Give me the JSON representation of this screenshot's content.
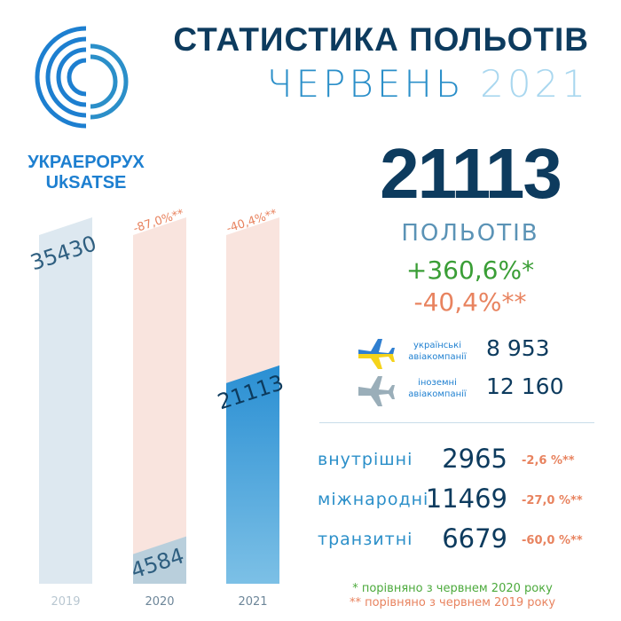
{
  "logo": {
    "line1": "УКРАЕРОРУХ",
    "line2": "UkSATSE"
  },
  "title": {
    "line1": "СТАТИСТИКА ПОЛЬОТІВ",
    "month": "ЧЕРВЕНЬ",
    "year": "2021"
  },
  "summary": {
    "total": "21113",
    "unit": "ПОЛЬОТІВ",
    "change_vs_2020": "+360,6%*",
    "change_vs_2019": "-40,4%**"
  },
  "airlines": [
    {
      "label_line1": "українські",
      "label_line2": "авіакомпанії",
      "value": "8 953",
      "icon": "airplane-icon-ukraine-flag"
    },
    {
      "label_line1": "іноземні",
      "label_line2": "авіакомпанії",
      "value": "12 160",
      "icon": "airplane-icon-grey"
    }
  ],
  "categories": [
    {
      "label": "внутрішні",
      "value": "2965",
      "change": "-2,6 %**"
    },
    {
      "label": "міжнародні",
      "value": "11469",
      "change": "-27,0 %**"
    },
    {
      "label": "транзитні",
      "value": "6679",
      "change": "-60,0 %**"
    }
  ],
  "notes": {
    "single": "* порівняно з червнем 2020 року",
    "double": "** порівняно з червнем 2019 року"
  },
  "colors": {
    "dark_blue": "#0d3b5e",
    "accent_blue": "#2b8fc9",
    "green": "#3a9e36",
    "orange": "#e8835f",
    "bar_2019": "#dde8f0",
    "bar_2020": "#b9cfdc",
    "bar_2021": "#3098d6",
    "ghost_bar": "#f7ddd6"
  },
  "chart_data": {
    "type": "bar",
    "categories": [
      "2019",
      "2020",
      "2021"
    ],
    "values": [
      35430,
      4584,
      21113
    ],
    "value_labels": [
      "35430",
      "4584",
      "21113"
    ],
    "annotations": [
      "",
      "-87,0%**",
      "-40,4%**"
    ],
    "ylim": [
      0,
      35430
    ],
    "grid": false,
    "legend": "none"
  }
}
